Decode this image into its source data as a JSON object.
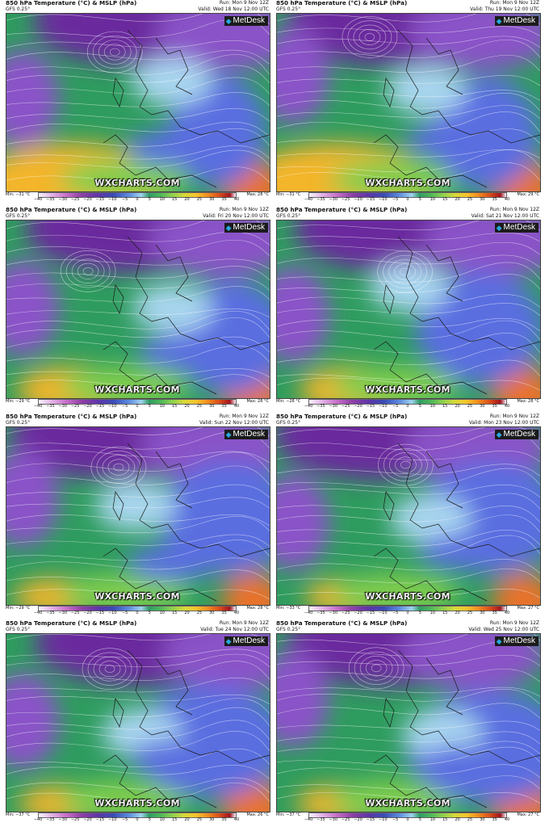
{
  "common": {
    "title": "850 hPa Temperature (°C) & MSLP (hPa)",
    "model": "GFS 0.25°",
    "run": "Run: Mon 9 Nov 12Z",
    "logo_text": "MetDesk",
    "watermark": "WXCHARTS.COM",
    "scale_ticks": [
      "−40",
      "−35",
      "−30",
      "−25",
      "−20",
      "−15",
      "−10",
      "−5",
      "0",
      "5",
      "10",
      "15",
      "20",
      "25",
      "30",
      "35",
      "40"
    ]
  },
  "panels": [
    {
      "valid": "Valid: Wed 18 Nov 12:00 UTC",
      "min": "Min: −31 °C",
      "max": "Max: 28 °C"
    },
    {
      "valid": "Valid: Thu 19 Nov 12:00 UTC",
      "min": "Min: −31 °C",
      "max": "Max: 29 °C"
    },
    {
      "valid": "Valid: Fri 20 Nov 12:00 UTC",
      "min": "Min: −29 °C",
      "max": "Max: 28 °C"
    },
    {
      "valid": "Valid: Sat 21 Nov 12:00 UTC",
      "min": "Min: −28 °C",
      "max": "Max: 28 °C"
    },
    {
      "valid": "Valid: Sun 22 Nov 12:00 UTC",
      "min": "Min: −29 °C",
      "max": "Max: 28 °C"
    },
    {
      "valid": "Valid: Mon 23 Nov 12:00 UTC",
      "min": "Min: −33 °C",
      "max": "Max: 27 °C"
    },
    {
      "valid": "Valid: Tue 24 Nov 12:00 UTC",
      "min": "Min: −37 °C",
      "max": "Max: 26 °C"
    },
    {
      "valid": "Valid: Wed 25 Nov 12:00 UTC",
      "min": "Min: −37 °C",
      "max": "Max: 27 °C"
    }
  ],
  "colors": {
    "deep_cold": "#6b2a9e",
    "cold": "#8a52c8",
    "cool": "#5a6ee0",
    "cool_light": "#a9d6ef",
    "mild": "#2e9c5e",
    "warm": "#7fcd4e",
    "hot": "#f3b52a",
    "hotter": "#e9722b",
    "coast": "#1a1a1a"
  }
}
